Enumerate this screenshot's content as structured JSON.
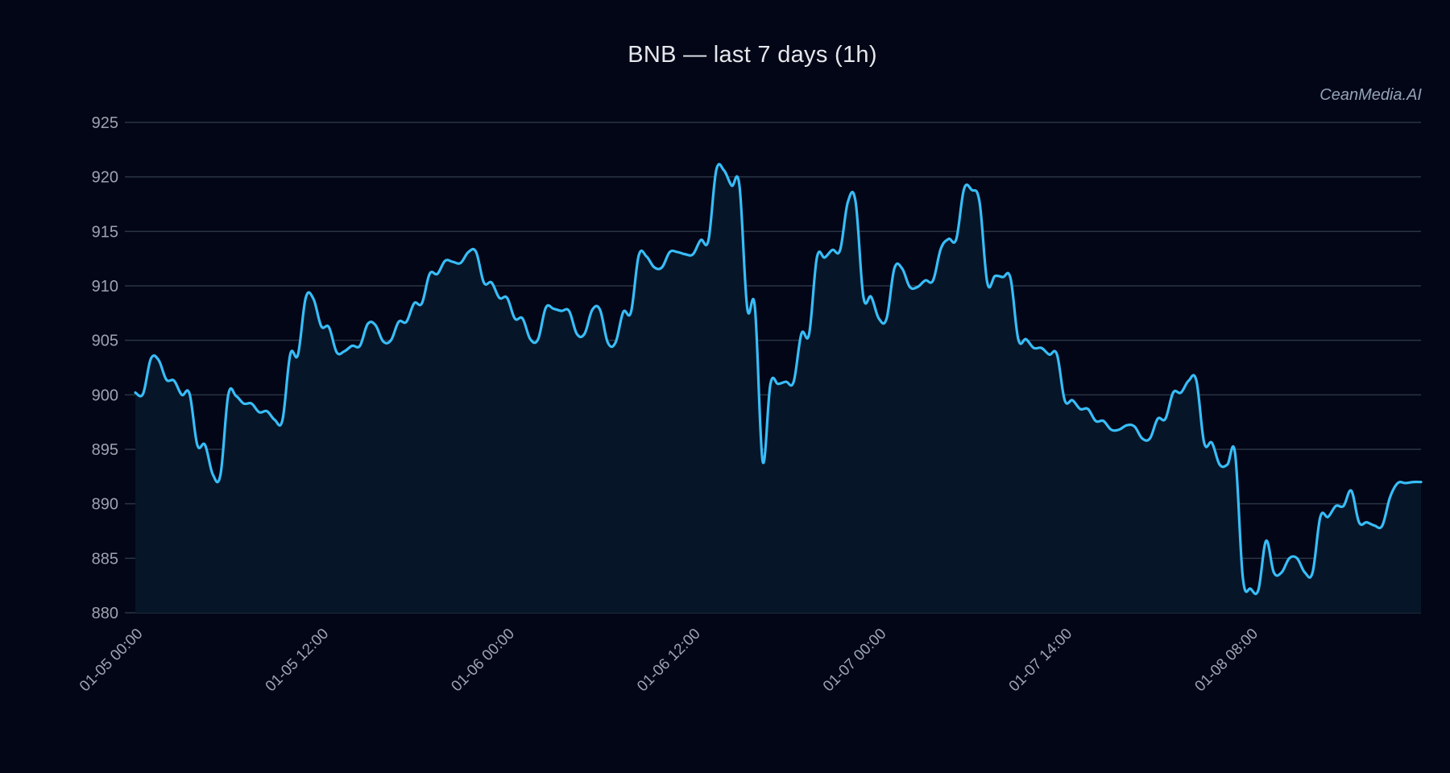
{
  "title": "BNB — last 7 days (1h)",
  "watermark": "CeanMedia.AI",
  "colors": {
    "background": "#020617",
    "line": "#38bdf8",
    "fill": "#061628",
    "grid": "#2b3544",
    "text": "#e5e7eb",
    "tick_text": "#9ca3af"
  },
  "chart_data": {
    "type": "area",
    "title": "BNB — last 7 days (1h)",
    "xlabel": "",
    "ylabel": "",
    "ylim": [
      880,
      925
    ],
    "yticks": [
      880,
      885,
      890,
      895,
      900,
      905,
      910,
      915,
      920,
      925
    ],
    "grid": true,
    "legend": null,
    "xticks": [
      {
        "label": "01-05 00:00",
        "index": 0
      },
      {
        "label": "01-05 12:00",
        "index": 24
      },
      {
        "label": "01-06 00:00",
        "index": 48
      },
      {
        "label": "01-06 12:00",
        "index": 72
      },
      {
        "label": "01-07 00:00",
        "index": 96
      },
      {
        "label": "01-07 14:00",
        "index": 120
      },
      {
        "label": "01-08 08:00",
        "index": 144
      }
    ],
    "series": [
      {
        "name": "BNB",
        "values": [
          900.2,
          900.1,
          903.3,
          903.2,
          901.4,
          901.3,
          900.0,
          900.1,
          895.4,
          895.4,
          892.7,
          892.7,
          900.0,
          899.9,
          899.2,
          899.2,
          898.4,
          898.5,
          897.7,
          897.7,
          903.7,
          903.7,
          908.9,
          908.8,
          906.3,
          906.2,
          903.9,
          904.0,
          904.5,
          904.5,
          906.5,
          906.4,
          904.9,
          905.0,
          906.7,
          906.7,
          908.4,
          908.4,
          911.1,
          911.1,
          912.3,
          912.2,
          912.1,
          913.1,
          913.1,
          910.3,
          910.3,
          908.9,
          908.9,
          907.0,
          907.0,
          905.1,
          905.1,
          908.0,
          907.9,
          907.7,
          907.7,
          905.6,
          905.6,
          907.8,
          907.8,
          904.8,
          904.8,
          907.6,
          907.6,
          912.8,
          912.7,
          911.7,
          911.7,
          913.1,
          913.1,
          912.9,
          912.9,
          914.2,
          914.2,
          920.6,
          920.6,
          919.2,
          919.2,
          908.0,
          908.0,
          893.9,
          901.0,
          901.0,
          901.2,
          901.2,
          905.6,
          905.6,
          912.6,
          912.6,
          913.3,
          913.3,
          917.7,
          917.7,
          909.0,
          909.0,
          907.0,
          907.0,
          911.6,
          911.6,
          909.9,
          909.9,
          910.5,
          910.5,
          913.4,
          914.3,
          914.3,
          918.9,
          918.8,
          917.7,
          910.3,
          910.9,
          910.8,
          910.7,
          905.1,
          905.1,
          904.3,
          904.3,
          903.7,
          903.7,
          899.5,
          899.5,
          898.7,
          898.7,
          897.6,
          897.6,
          896.8,
          896.8,
          897.2,
          897.1,
          896.0,
          896.0,
          897.8,
          897.8,
          900.2,
          900.2,
          901.3,
          901.3,
          895.6,
          895.6,
          893.6,
          893.6,
          894.6,
          883.2,
          882.2,
          882.1,
          886.6,
          883.7,
          883.7,
          885.0,
          885.0,
          883.7,
          883.7,
          888.8,
          888.8,
          889.8,
          889.8,
          891.2,
          888.3,
          888.3,
          888.0,
          888.0,
          890.6,
          891.9,
          891.9,
          892.0,
          892.0
        ]
      }
    ]
  }
}
